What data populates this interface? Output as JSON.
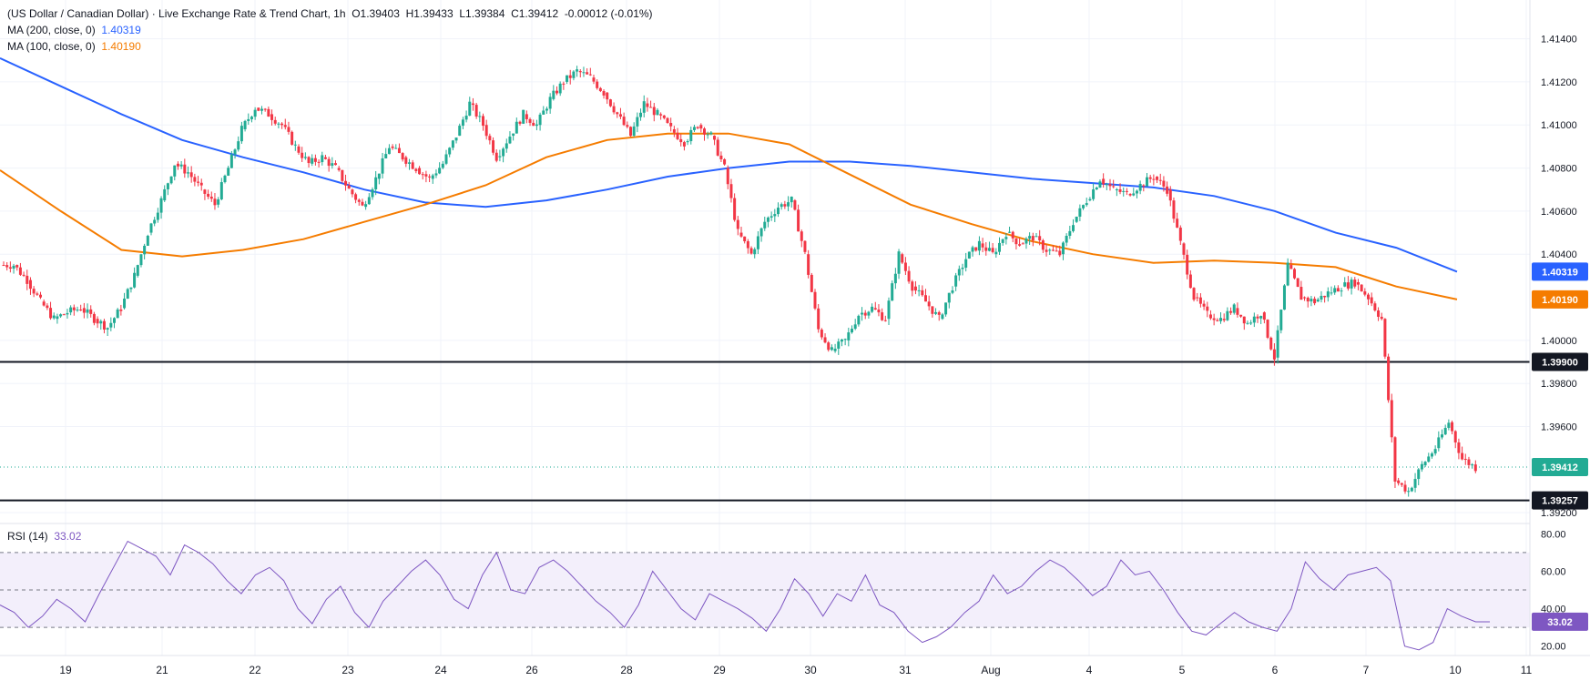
{
  "header": {
    "title": "(US Dollar / Canadian Dollar) · Live Exchange Rate & Trend Chart, 1h",
    "ohlc": {
      "o_label": "O",
      "o": "1.39403",
      "h_label": "H",
      "h": "1.39433",
      "l_label": "L",
      "l": "1.39384",
      "c_label": "C",
      "c": "1.39412",
      "change": "-0.00012 (-0.01%)"
    },
    "ma200_label": "MA (200, close, 0)",
    "ma200_value": "1.40319",
    "ma100_label": "MA (100, close, 0)",
    "ma100_value": "1.40190"
  },
  "rsi_header": {
    "label": "RSI (14)",
    "value": "33.02"
  },
  "colors": {
    "up": "#22ab94",
    "down": "#f23645",
    "ma200": "#2962ff",
    "ma100": "#f57c00",
    "rsi": "#7e57c2",
    "rsi_band": "#f3effb",
    "grid": "#f0f3fa",
    "price_line": "#22ab94"
  },
  "chart_data": [
    {
      "type": "candlestick",
      "title": "US Dollar / Canadian Dollar, 1h",
      "y_ticks": [
        "1.41400",
        "1.41200",
        "1.41000",
        "1.40800",
        "1.40600",
        "1.40400",
        "1.40000",
        "1.39800",
        "1.39600",
        "1.39200"
      ],
      "ylim": [
        1.3915,
        1.4158
      ],
      "x_ticks": [
        "19",
        "21",
        "22",
        "23",
        "24",
        "26",
        "28",
        "29",
        "30",
        "31",
        "Aug",
        "4",
        "5",
        "6",
        "7",
        "10",
        "11"
      ],
      "horizontal_levels": [
        {
          "value": 1.399,
          "label": "1.39900"
        },
        {
          "value": 1.39257,
          "label": "1.39257"
        }
      ],
      "last_price": {
        "value": 1.39412,
        "label": "1.39412"
      },
      "ma_labels": [
        {
          "name": "MA (200, close, 0)",
          "value": 1.40319,
          "label": "1.40319"
        },
        {
          "name": "MA (100, close, 0)",
          "value": 1.4019,
          "label": "1.40190"
        }
      ],
      "price_path": [
        1.4035,
        1.4028,
        1.4018,
        1.401,
        1.4013,
        1.4015,
        1.401,
        1.4006,
        1.4015,
        1.403,
        1.405,
        1.4065,
        1.4082,
        1.4078,
        1.407,
        1.4063,
        1.408,
        1.4098,
        1.4108,
        1.4105,
        1.41,
        1.409,
        1.4082,
        1.4085,
        1.408,
        1.407,
        1.4062,
        1.4075,
        1.409,
        1.4085,
        1.408,
        1.4075,
        1.4082,
        1.4095,
        1.411,
        1.41,
        1.4085,
        1.4095,
        1.4105,
        1.41,
        1.4112,
        1.412,
        1.4125,
        1.4122,
        1.4115,
        1.4105,
        1.4095,
        1.411,
        1.4105,
        1.4098,
        1.4092,
        1.41,
        1.4095,
        1.408,
        1.405,
        1.404,
        1.4055,
        1.4062,
        1.4065,
        1.404,
        1.4005,
        1.3995,
        1.4,
        1.4012,
        1.4015,
        1.401,
        1.404,
        1.4025,
        1.4018,
        1.401,
        1.4025,
        1.4038,
        1.4045,
        1.404,
        1.405,
        1.4045,
        1.4048,
        1.4042,
        1.404,
        1.4055,
        1.4065,
        1.4075,
        1.407,
        1.4068,
        1.4072,
        1.4076,
        1.407,
        1.4045,
        1.402,
        1.4012,
        1.401,
        1.4015,
        1.4008,
        1.4013,
        1.3992,
        1.4035,
        1.402,
        1.4018,
        1.4022,
        1.4025,
        1.4027,
        1.402,
        1.401,
        1.3935,
        1.393,
        1.3942,
        1.395,
        1.3962,
        1.3945,
        1.3941
      ],
      "ma200_path": [
        1.4131,
        1.4118,
        1.4105,
        1.4093,
        1.4085,
        1.4078,
        1.407,
        1.4064,
        1.4062,
        1.4065,
        1.407,
        1.4076,
        1.408,
        1.4083,
        1.4083,
        1.4081,
        1.4078,
        1.4075,
        1.4073,
        1.4071,
        1.4067,
        1.406,
        1.405,
        1.4043,
        1.40319
      ],
      "ma100_path": [
        1.4079,
        1.406,
        1.4042,
        1.4039,
        1.4042,
        1.4047,
        1.4055,
        1.4063,
        1.4072,
        1.4085,
        1.4093,
        1.4096,
        1.4096,
        1.4091,
        1.4077,
        1.4063,
        1.4054,
        1.4046,
        1.404,
        1.4036,
        1.4037,
        1.4036,
        1.4034,
        1.4025,
        1.4019
      ]
    },
    {
      "type": "line",
      "title": "RSI (14)",
      "y_ticks": [
        "80.00",
        "60.00",
        "40.00",
        "20.00"
      ],
      "ylim": [
        15,
        85
      ],
      "levels": [
        70,
        50,
        30
      ],
      "band": [
        30,
        70
      ],
      "last": {
        "value": 33.02,
        "label": "33.02"
      },
      "rsi_path": [
        42,
        38,
        30,
        36,
        45,
        40,
        33,
        48,
        62,
        76,
        72,
        68,
        58,
        74,
        70,
        64,
        55,
        48,
        58,
        62,
        55,
        40,
        32,
        45,
        52,
        38,
        30,
        44,
        52,
        60,
        66,
        58,
        45,
        40,
        58,
        70,
        50,
        48,
        62,
        66,
        60,
        52,
        44,
        38,
        30,
        42,
        60,
        50,
        40,
        34,
        48,
        44,
        40,
        35,
        28,
        40,
        56,
        48,
        36,
        48,
        44,
        58,
        42,
        38,
        28,
        22,
        25,
        30,
        38,
        44,
        58,
        48,
        52,
        60,
        66,
        62,
        55,
        47,
        52,
        66,
        58,
        60,
        50,
        38,
        28,
        26,
        32,
        38,
        33,
        30,
        28,
        40,
        65,
        56,
        50,
        58,
        60,
        62,
        55,
        20,
        18,
        22,
        40,
        36,
        33,
        33
      ]
    }
  ]
}
